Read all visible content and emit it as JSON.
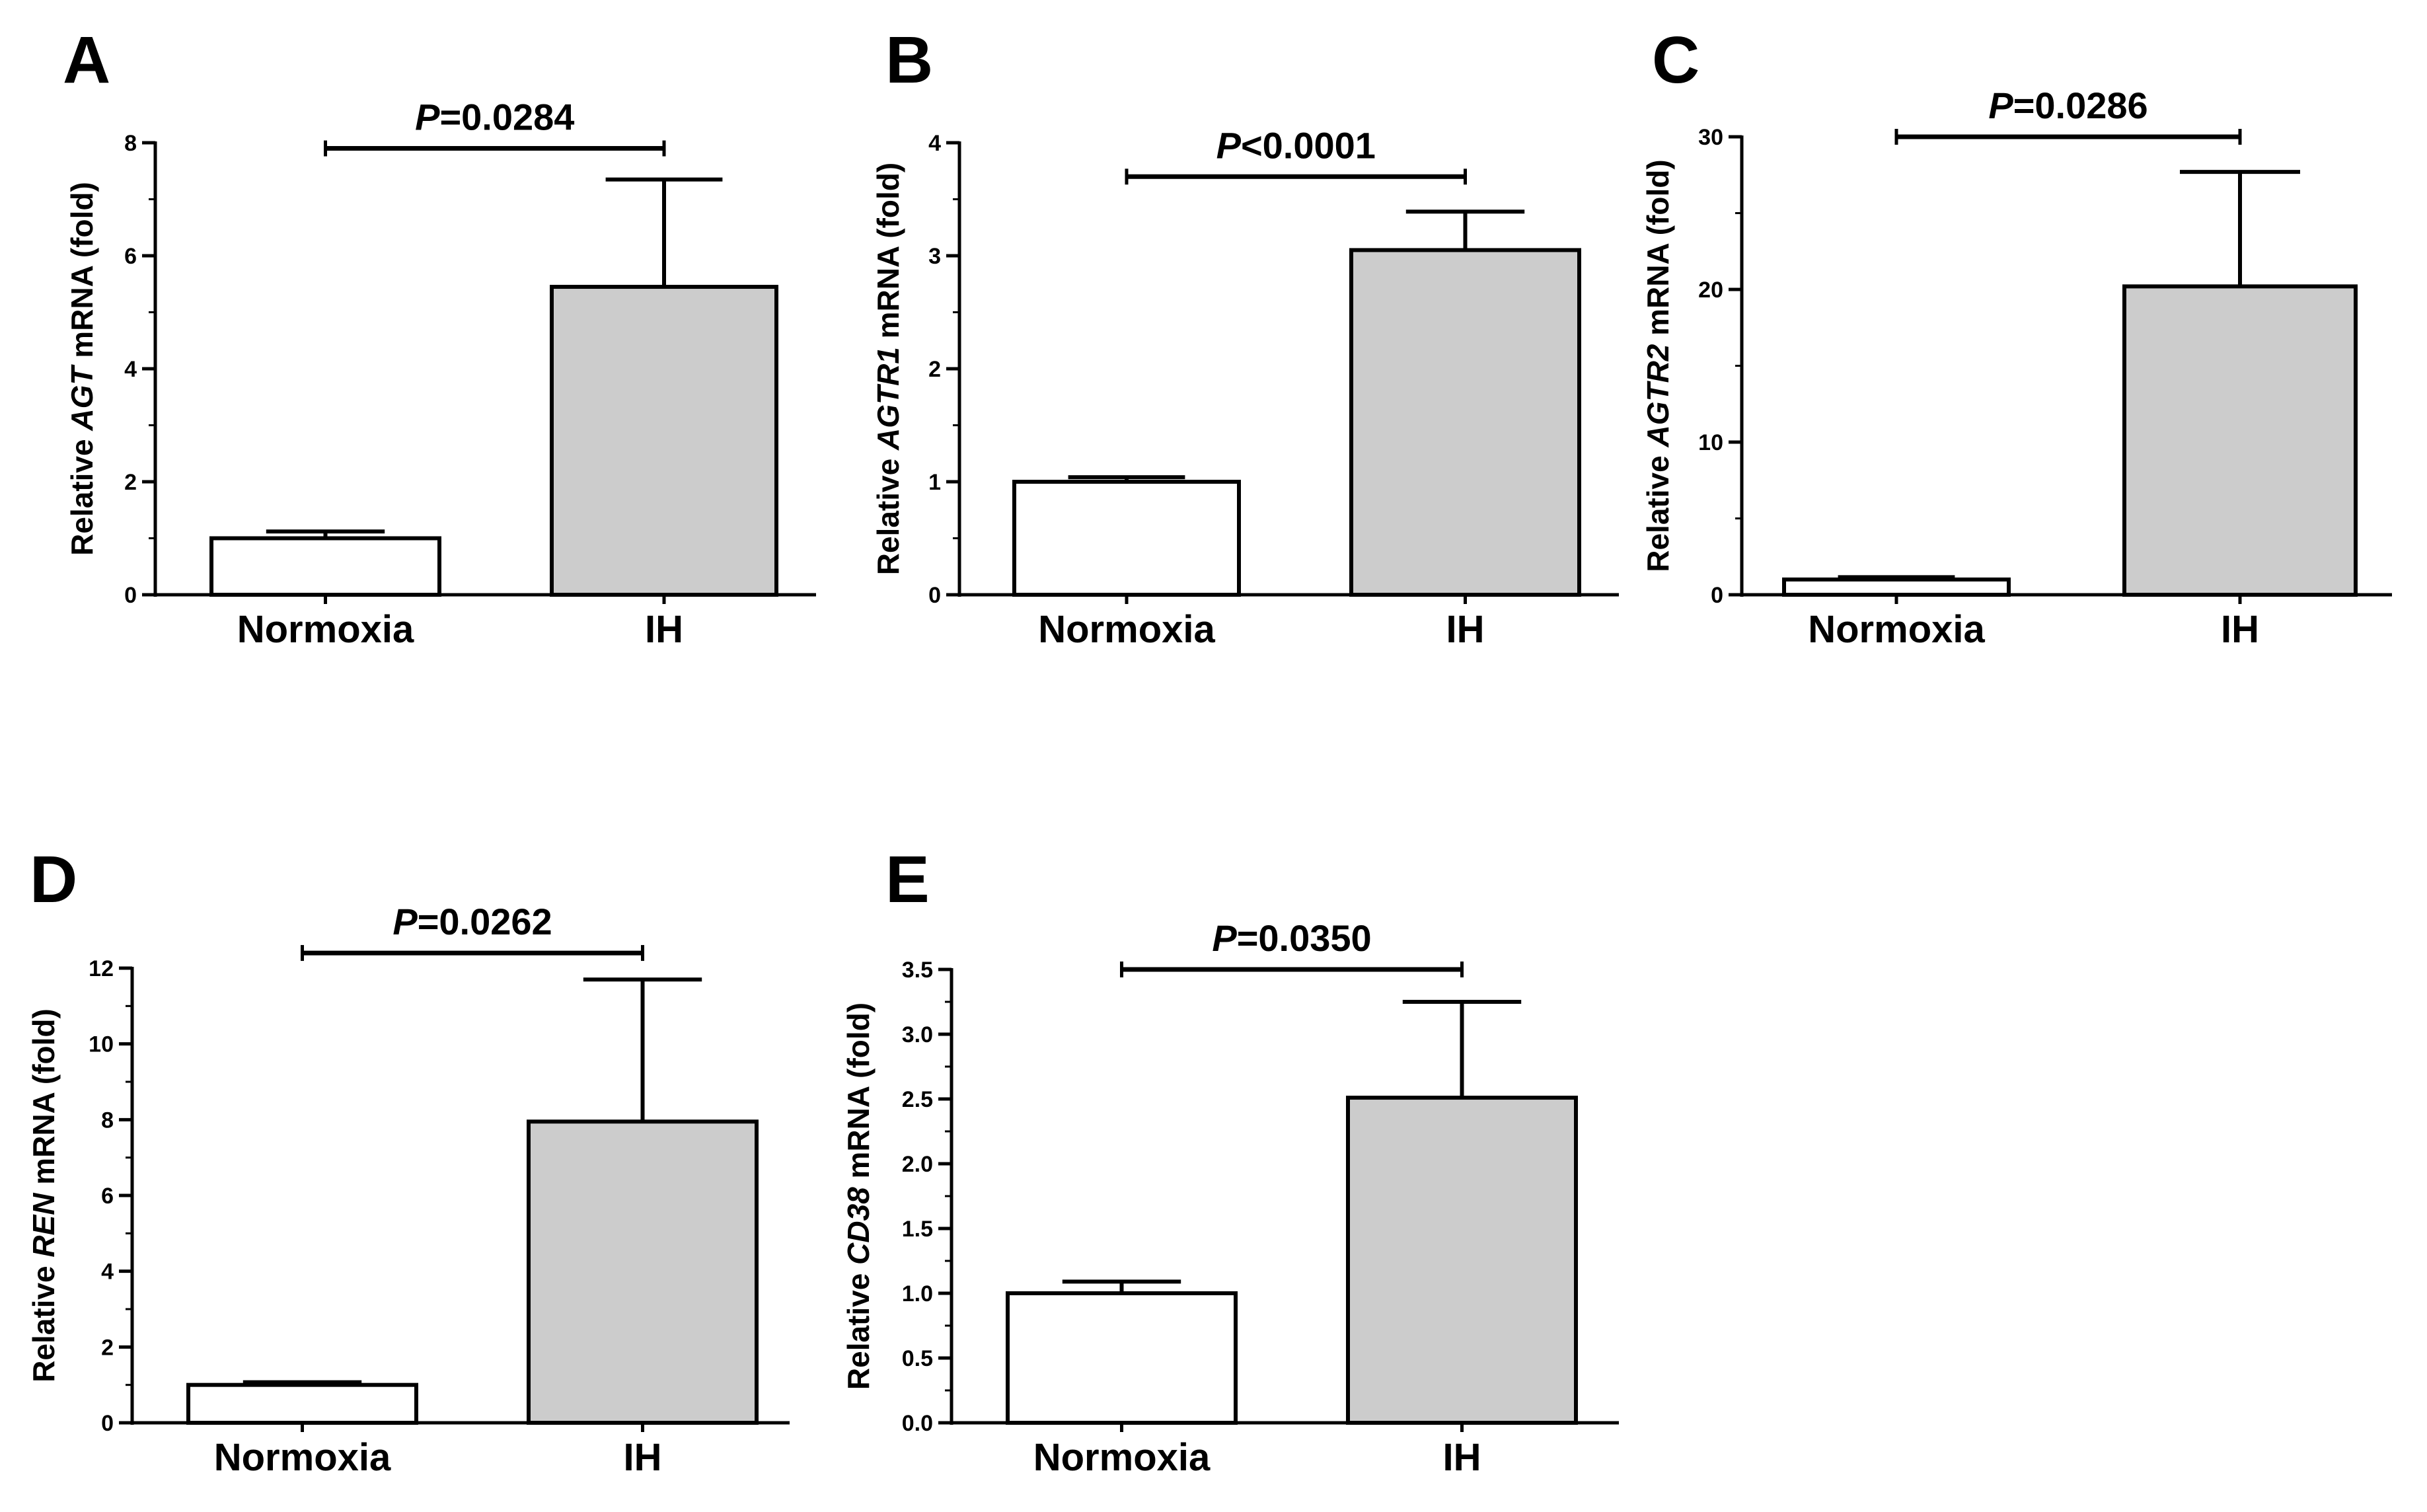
{
  "figure": {
    "colors": {
      "normoxia_fill": "#ffffff",
      "ih_fill": "#cccccc",
      "stroke": "#000000"
    }
  },
  "chart_data": [
    {
      "panel": "A",
      "type": "bar",
      "title": "",
      "ylabel_prefix": "Relative ",
      "gene": "AGT",
      "ylabel_suffix": " mRNA (fold)",
      "categories": [
        "Normoxia",
        "IH"
      ],
      "values": [
        1.0,
        5.45
      ],
      "errors": [
        0.12,
        1.9
      ],
      "ylim": [
        0,
        8
      ],
      "major_ticks": [
        0,
        2,
        4,
        6,
        8
      ],
      "tick_labels": [
        "0",
        "2",
        "4",
        "6",
        "8"
      ],
      "minor_step": 1,
      "p_italic": "P",
      "p_rest": "=0.0284",
      "bracket_y": 7.9,
      "grid": false
    },
    {
      "panel": "B",
      "type": "bar",
      "title": "",
      "ylabel_prefix": "Relative ",
      "gene": "AGTR1",
      "ylabel_suffix": " mRNA (fold)",
      "categories": [
        "Normoxia",
        "IH"
      ],
      "values": [
        1.0,
        3.05
      ],
      "errors": [
        0.04,
        0.34
      ],
      "ylim": [
        0,
        4
      ],
      "major_ticks": [
        0,
        1,
        2,
        3,
        4
      ],
      "tick_labels": [
        "0",
        "1",
        "2",
        "3",
        "4"
      ],
      "minor_step": 0.5,
      "p_italic": "P",
      "p_rest": "<0.0001",
      "bracket_y": 3.7,
      "grid": false
    },
    {
      "panel": "C",
      "type": "bar",
      "title": "",
      "ylabel_prefix": "Relative ",
      "gene": "AGTR2",
      "ylabel_suffix": " mRNA (fold)",
      "categories": [
        "Normoxia",
        "IH"
      ],
      "values": [
        1.0,
        20.2
      ],
      "errors": [
        0.15,
        7.5
      ],
      "ylim": [
        0,
        30
      ],
      "major_ticks": [
        0,
        10,
        20,
        30
      ],
      "tick_labels": [
        "0",
        "10",
        "20",
        "30"
      ],
      "minor_step": 5,
      "p_italic": "P",
      "p_rest": "=0.0286",
      "bracket_y": 30,
      "grid": false
    },
    {
      "panel": "D",
      "type": "bar",
      "title": "",
      "ylabel_prefix": "Relative ",
      "gene": "REN",
      "ylabel_suffix": " mRNA (fold)",
      "categories": [
        "Normoxia",
        "IH"
      ],
      "values": [
        1.0,
        7.95
      ],
      "errors": [
        0.07,
        3.75
      ],
      "ylim": [
        0,
        12
      ],
      "major_ticks": [
        0,
        2,
        4,
        6,
        8,
        10,
        12
      ],
      "tick_labels": [
        "0",
        "2",
        "4",
        "6",
        "8",
        "10",
        "12"
      ],
      "minor_step": 1,
      "p_italic": "P",
      "p_rest": "=0.0262",
      "bracket_y": 12.4,
      "grid": false
    },
    {
      "panel": "E",
      "type": "bar",
      "title": "",
      "ylabel_prefix": "Relative ",
      "gene": "CD38",
      "ylabel_suffix": " mRNA (fold)",
      "categories": [
        "Normoxia",
        "IH"
      ],
      "values": [
        1.0,
        2.51
      ],
      "errors": [
        0.09,
        0.74
      ],
      "ylim": [
        0,
        3.5
      ],
      "major_ticks": [
        0,
        0.5,
        1,
        1.5,
        2,
        2.5,
        3,
        3.5
      ],
      "tick_labels": [
        "0.0",
        "0.5",
        "1.0",
        "1.5",
        "2.0",
        "2.5",
        "3.0",
        "3.5"
      ],
      "minor_step": 0.25,
      "p_italic": "P",
      "p_rest": "=0.0350",
      "bracket_y": 3.5,
      "grid": false
    }
  ]
}
